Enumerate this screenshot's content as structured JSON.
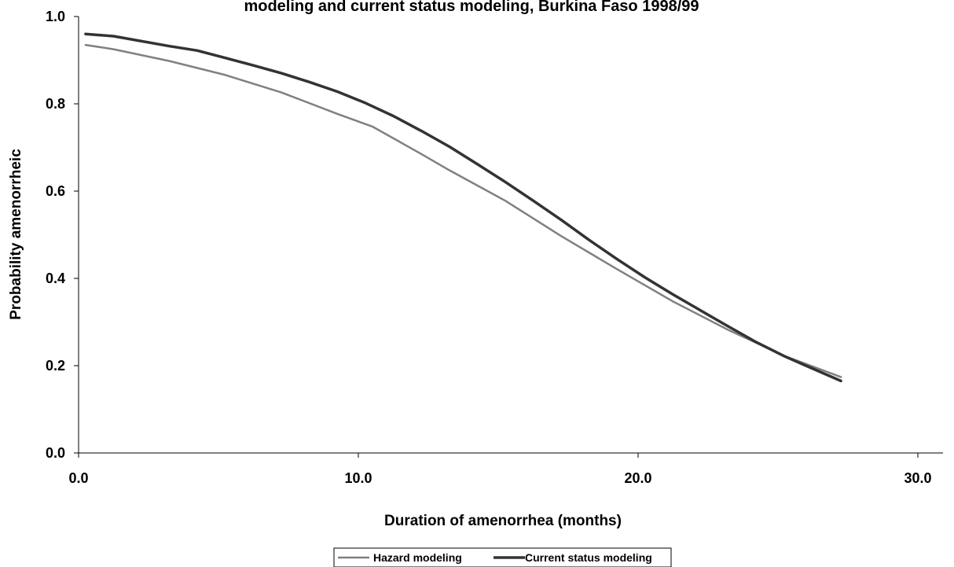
{
  "chart_data": {
    "type": "line",
    "title": "modeling and current status modeling, Burkina Faso 1998/99",
    "xlabel": "Duration of amenorrhea (months)",
    "ylabel": "Probability amenorrheic",
    "xlim": [
      0,
      30
    ],
    "ylim": [
      0,
      1
    ],
    "x_ticks": [
      0,
      10,
      20,
      30
    ],
    "x_tick_labels": [
      "0.0",
      "10.0",
      "20.0",
      "30.0"
    ],
    "y_ticks": [
      0,
      0.2,
      0.4,
      0.6,
      0.8,
      1.0
    ],
    "y_tick_labels": [
      "0.0",
      "0.2",
      "0.4",
      "0.6",
      "0.8",
      "1.0"
    ],
    "grid": false,
    "legend_position": "bottom-center",
    "series": [
      {
        "name": "Hazard modeling",
        "color": "#808080",
        "x": [
          0.25,
          1.25,
          3.25,
          5.25,
          7.25,
          9.25,
          10.5,
          12.25,
          13.25,
          15.25,
          17.25,
          19.25,
          21.25,
          23.25,
          25.25,
          27.25
        ],
        "y": [
          0.935,
          0.925,
          0.898,
          0.866,
          0.826,
          0.777,
          0.748,
          0.685,
          0.648,
          0.578,
          0.497,
          0.421,
          0.347,
          0.281,
          0.222,
          0.174
        ]
      },
      {
        "name": "Current status modeling",
        "color": "#333333",
        "x": [
          0.25,
          1.25,
          3.25,
          4.25,
          5.25,
          6.25,
          7.25,
          8.25,
          9.25,
          10.25,
          11.25,
          12.25,
          13.25,
          14.25,
          15.25,
          16.25,
          17.25,
          18.25,
          19.25,
          20.25,
          21.25,
          22.25,
          23.25,
          24.25,
          25.25,
          26.25,
          27.25
        ],
        "y": [
          0.96,
          0.955,
          0.932,
          0.922,
          0.905,
          0.888,
          0.87,
          0.85,
          0.828,
          0.802,
          0.772,
          0.738,
          0.702,
          0.662,
          0.621,
          0.578,
          0.534,
          0.488,
          0.444,
          0.402,
          0.363,
          0.326,
          0.289,
          0.253,
          0.221,
          0.193,
          0.165
        ]
      }
    ]
  }
}
